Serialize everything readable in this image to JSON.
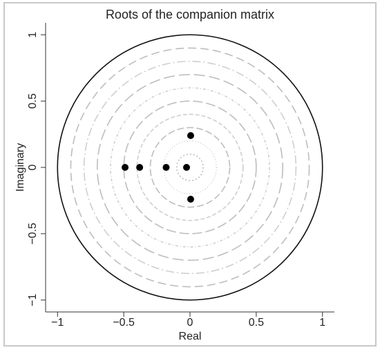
{
  "chart_data": {
    "type": "scatter",
    "title": "Roots of the companion matrix",
    "x_label": "Real",
    "y_label": "Imaginary",
    "x": [
      0.005,
      0.005,
      -0.49,
      -0.38,
      -0.18,
      -0.026
    ],
    "values": [
      0.24,
      -0.24,
      0,
      0,
      0,
      0
    ],
    "color": "#000000",
    "xlim": [
      -1.09,
      1.09
    ],
    "ylim": [
      -1.09,
      1.09
    ],
    "xticks": [
      {
        "value": -1,
        "label": "−1"
      },
      {
        "value": -0.5,
        "label": "−0.5"
      },
      0,
      0.5,
      1
    ],
    "yticks": [
      {
        "value": -1,
        "label": "−1"
      },
      {
        "value": -0.5,
        "label": "−0.5"
      },
      0,
      0.5,
      1
    ]
  }
}
